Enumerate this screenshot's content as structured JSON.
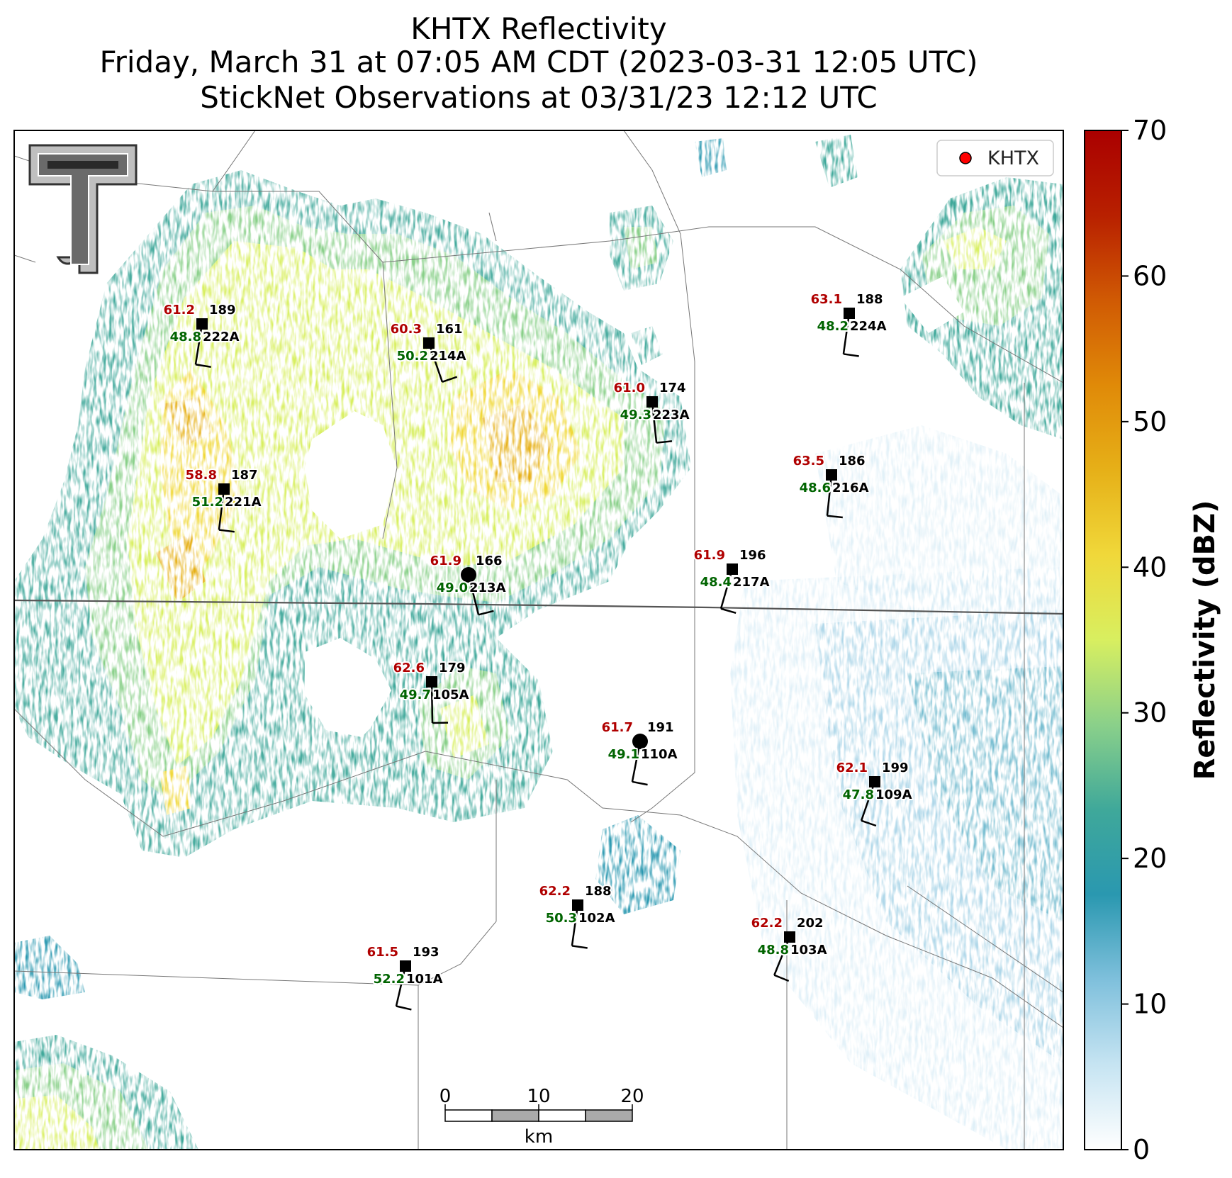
{
  "title": {
    "line1": "KHTX Reflectivity",
    "line2": "Friday, March 31 at 07:05 AM CDT (2023-03-31 12:05 UTC)",
    "line3": "StickNet Observations at 03/31/23 12:12 UTC"
  },
  "legend": {
    "label": "KHTX",
    "marker_color": "#ff0000"
  },
  "colorbar": {
    "label": "Reflectivity (dBZ)",
    "ticks": [
      "0",
      "10",
      "20",
      "30",
      "40",
      "50",
      "60",
      "70"
    ],
    "colors": [
      "#ffffff",
      "#c6e4f2",
      "#7fc0dc",
      "#2a98b0",
      "#3fa89a",
      "#8ad08a",
      "#d8ef60",
      "#f0d83a",
      "#e6b018",
      "#e08a08",
      "#d05a04",
      "#b82000",
      "#aa0000"
    ]
  },
  "scale_bar": {
    "ticks": [
      "0",
      "10",
      "20"
    ],
    "unit": "km"
  },
  "logo": {
    "name": "texas-tech-double-t"
  },
  "stations": [
    {
      "id": "222A",
      "temp": "61.2",
      "dew": "48.8",
      "dir": "189"
    },
    {
      "id": "214A",
      "temp": "60.3",
      "dew": "50.2",
      "dir": "161"
    },
    {
      "id": "223A",
      "temp": "61.0",
      "dew": "49.3",
      "dir": "174"
    },
    {
      "id": "224A",
      "temp": "63.1",
      "dew": "48.2",
      "dir": "188"
    },
    {
      "id": "221A",
      "temp": "58.8",
      "dew": "51.2",
      "dir": "187"
    },
    {
      "id": "216A",
      "temp": "63.5",
      "dew": "48.6",
      "dir": "186"
    },
    {
      "id": "213A",
      "temp": "61.9",
      "dew": "49.0",
      "dir": "166"
    },
    {
      "id": "217A",
      "temp": "61.9",
      "dew": "48.4",
      "dir": "196"
    },
    {
      "id": "105A",
      "temp": "62.6",
      "dew": "49.7",
      "dir": "179"
    },
    {
      "id": "110A",
      "temp": "61.7",
      "dew": "49.1",
      "dir": "191"
    },
    {
      "id": "109A",
      "temp": "62.1",
      "dew": "47.8",
      "dir": "199"
    },
    {
      "id": "102A",
      "temp": "62.2",
      "dew": "50.3",
      "dir": "188"
    },
    {
      "id": "103A",
      "temp": "62.2",
      "dew": "48.8",
      "dir": "202"
    },
    {
      "id": "101A",
      "temp": "61.5",
      "dew": "52.2",
      "dir": "193"
    }
  ]
}
